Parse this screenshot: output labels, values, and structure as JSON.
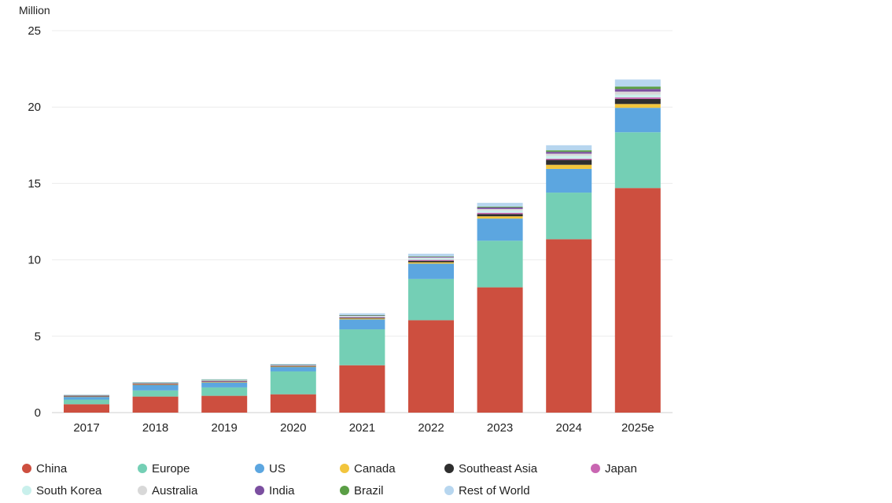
{
  "chart_data": {
    "type": "bar",
    "stacked": true,
    "unit_label": "Million",
    "categories": [
      "2017",
      "2018",
      "2019",
      "2020",
      "2021",
      "2022",
      "2023",
      "2024",
      "2025e"
    ],
    "ylim": [
      0,
      25
    ],
    "yticks": [
      "0",
      "5",
      "10",
      "15",
      "20",
      "25"
    ],
    "ytick_values": [
      0,
      5,
      10,
      15,
      20,
      25
    ],
    "grid": true,
    "legend_position": "bottom",
    "series": [
      {
        "name": "China",
        "color": "#cd4f3f",
        "values": [
          0.55,
          1.05,
          1.1,
          1.2,
          3.1,
          6.05,
          8.2,
          11.35,
          14.7
        ]
      },
      {
        "name": "Europe",
        "color": "#74cfb5",
        "values": [
          0.3,
          0.4,
          0.55,
          1.5,
          2.35,
          2.7,
          3.05,
          3.05,
          3.65
        ]
      },
      {
        "name": "US",
        "color": "#5ca6e0",
        "values": [
          0.18,
          0.35,
          0.32,
          0.28,
          0.65,
          1.0,
          1.45,
          1.55,
          1.6
        ]
      },
      {
        "name": "Canada",
        "color": "#f2c53d",
        "values": [
          0.02,
          0.03,
          0.03,
          0.03,
          0.06,
          0.09,
          0.15,
          0.27,
          0.25
        ]
      },
      {
        "name": "Southeast Asia",
        "color": "#2e2e2e",
        "values": [
          0.02,
          0.03,
          0.03,
          0.03,
          0.05,
          0.1,
          0.15,
          0.32,
          0.33
        ]
      },
      {
        "name": "Japan",
        "color": "#c966b2",
        "values": [
          0.05,
          0.04,
          0.04,
          0.03,
          0.04,
          0.06,
          0.08,
          0.08,
          0.1
        ]
      },
      {
        "name": "South Korea",
        "color": "#c9f0ec",
        "values": [
          0.01,
          0.03,
          0.04,
          0.03,
          0.06,
          0.1,
          0.15,
          0.18,
          0.18
        ]
      },
      {
        "name": "Australia",
        "color": "#d8d8d8",
        "values": [
          0.005,
          0.01,
          0.01,
          0.01,
          0.03,
          0.05,
          0.1,
          0.15,
          0.2
        ]
      },
      {
        "name": "India",
        "color": "#7b4fa0",
        "values": [
          0.005,
          0.01,
          0.01,
          0.01,
          0.02,
          0.05,
          0.1,
          0.12,
          0.17
        ]
      },
      {
        "name": "Brazil",
        "color": "#5a9e45",
        "values": [
          0.005,
          0.005,
          0.01,
          0.01,
          0.02,
          0.03,
          0.05,
          0.1,
          0.16
        ]
      },
      {
        "name": "Rest of World",
        "color": "#b7d6ef",
        "values": [
          0.03,
          0.05,
          0.05,
          0.06,
          0.12,
          0.17,
          0.25,
          0.33,
          0.46
        ]
      }
    ]
  }
}
